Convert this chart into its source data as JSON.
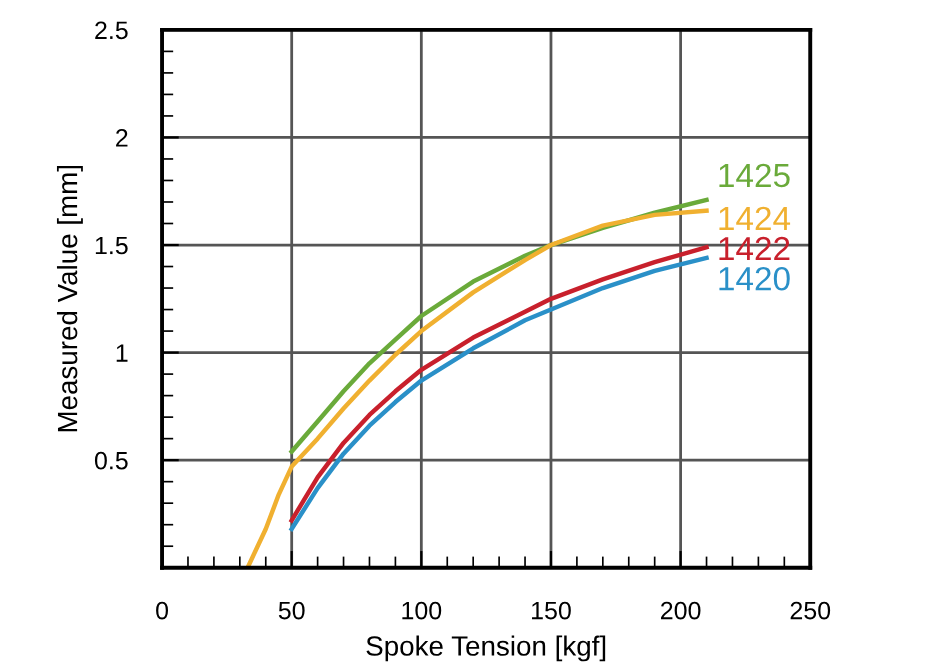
{
  "chart_data": {
    "type": "line",
    "xlabel": "Spoke Tension [kgf]",
    "ylabel": "Measured Value [mm]",
    "xlim": [
      0,
      250
    ],
    "ylim": [
      0,
      2.5
    ],
    "xticks": [
      0,
      50,
      100,
      150,
      200,
      250
    ],
    "yticks": [
      {
        "value": 0,
        "label": null
      },
      0.5,
      1,
      1.5,
      2,
      2.5
    ],
    "grid": true,
    "legend": false,
    "marker": "none",
    "line_style": "solid",
    "series": [
      {
        "name": "1425",
        "color": "#6aaa3a",
        "x": [
          50,
          60,
          70,
          80,
          90,
          100,
          120,
          140,
          150,
          170,
          190,
          210
        ],
        "values": [
          0.54,
          0.68,
          0.82,
          0.95,
          1.06,
          1.17,
          1.33,
          1.45,
          1.5,
          1.58,
          1.65,
          1.71
        ]
      },
      {
        "name": "1424",
        "color": "#f0b030",
        "x": [
          33,
          40,
          45,
          50,
          60,
          70,
          80,
          90,
          100,
          120,
          140,
          150,
          170,
          190,
          210
        ],
        "values": [
          0,
          0.18,
          0.34,
          0.47,
          0.6,
          0.74,
          0.87,
          0.99,
          1.1,
          1.28,
          1.43,
          1.5,
          1.59,
          1.64,
          1.66
        ]
      },
      {
        "name": "1422",
        "color": "#c8202c",
        "x": [
          50,
          60,
          70,
          80,
          90,
          100,
          120,
          140,
          150,
          170,
          190,
          210
        ],
        "values": [
          0.22,
          0.42,
          0.58,
          0.71,
          0.82,
          0.92,
          1.07,
          1.19,
          1.25,
          1.34,
          1.42,
          1.49
        ]
      },
      {
        "name": "1420",
        "color": "#2a90c8",
        "x": [
          50,
          60,
          70,
          80,
          90,
          100,
          120,
          140,
          150,
          170,
          190,
          210
        ],
        "values": [
          0.18,
          0.37,
          0.53,
          0.66,
          0.77,
          0.87,
          1.02,
          1.15,
          1.2,
          1.3,
          1.38,
          1.44
        ]
      }
    ]
  }
}
